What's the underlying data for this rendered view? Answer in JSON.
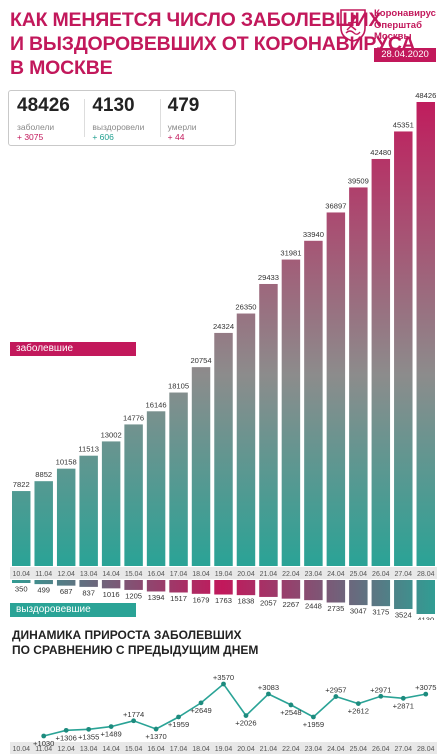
{
  "header": {
    "title_lines": [
      "КАК МЕНЯЕТСЯ ЧИСЛО ЗАБОЛЕВШИХ",
      "И ВЫЗДОРОВЕВШИХ ОТ КОРОНАВИРУСА",
      "В МОСКВЕ"
    ],
    "org_lines": [
      "Коронавирус",
      "Оперштаб",
      "Москвы"
    ],
    "date": "28.04.2020",
    "logo_icon": "moscow-coat-of-arms-icon"
  },
  "stats": [
    {
      "value": "48426",
      "label": "заболели",
      "increment": "+ 3075"
    },
    {
      "value": "4130",
      "label": "выздоровели",
      "increment": "+ 606"
    },
    {
      "value": "479",
      "label": "умерли",
      "increment": "+ 44"
    }
  ],
  "legend": {
    "sick": "заболевшие",
    "recovered": "выздоровевшие"
  },
  "colors": {
    "accent": "#c2185b",
    "teal": "#2aa396",
    "gray": "#8c8c8c"
  },
  "chart_data": [
    {
      "type": "bar",
      "title": "",
      "categories": [
        "10.04",
        "11.04",
        "12.04",
        "13.04",
        "14.04",
        "15.04",
        "16.04",
        "17.04",
        "18.04",
        "19.04",
        "20.04",
        "21.04",
        "22.04",
        "23.04",
        "24.04",
        "25.04",
        "26.04",
        "27.04",
        "28.04"
      ],
      "series": [
        {
          "name": "заболевшие",
          "values": [
            7822,
            8852,
            10158,
            11513,
            13002,
            14776,
            16146,
            18105,
            20754,
            24324,
            26350,
            29433,
            31981,
            33940,
            36897,
            39509,
            42480,
            45351,
            48426
          ]
        },
        {
          "name": "выздоровевшие",
          "values": [
            350,
            499,
            687,
            837,
            1016,
            1205,
            1394,
            1517,
            1679,
            1763,
            1838,
            2057,
            2267,
            2448,
            2735,
            3047,
            3175,
            3524,
            4130
          ]
        }
      ]
    },
    {
      "type": "line",
      "title": "ДИНАМИКА ПРИРОСТА ЗАБОЛЕВШИХ ПО СРАВНЕНИЮ С ПРЕДЫДУЩИМ ДНЕМ",
      "categories": [
        "10.04",
        "11.04",
        "12.04",
        "13.04",
        "14.04",
        "15.04",
        "16.04",
        "17.04",
        "18.04",
        "19.04",
        "20.04",
        "21.04",
        "22.04",
        "23.04",
        "24.04",
        "25.04",
        "26.04",
        "27.04",
        "28.04"
      ],
      "value_labels": [
        "",
        "+1030",
        "+1306",
        "+1355",
        "+1489",
        "+1774",
        "+1370",
        "+1959",
        "+2649",
        "+3570",
        "+2026",
        "+3083",
        "+2548",
        "+1959",
        "+2957",
        "+2612",
        "+2971",
        "+2871",
        "+3075"
      ],
      "values": [
        null,
        1030,
        1306,
        1355,
        1489,
        1774,
        1370,
        1959,
        2649,
        3570,
        2026,
        3083,
        2548,
        1959,
        2957,
        2612,
        2971,
        2871,
        3075
      ]
    }
  ]
}
